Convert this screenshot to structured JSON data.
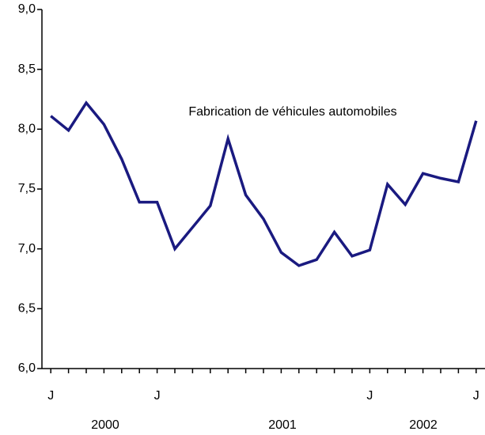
{
  "chart_data": {
    "type": "line",
    "annotation": "Fabrication de véhicules automobiles",
    "categories": [
      "J",
      null,
      null,
      null,
      null,
      null,
      "J",
      null,
      null,
      null,
      null,
      null,
      null,
      null,
      null,
      null,
      null,
      null,
      "J",
      null,
      null,
      null,
      null,
      null,
      "J"
    ],
    "years": [
      "2000",
      "2001",
      "2002"
    ],
    "series": [
      {
        "color": "#1a1a80",
        "values": [
          8.11,
          7.99,
          8.22,
          8.04,
          7.75,
          7.39,
          7.39,
          7.0,
          7.18,
          7.36,
          7.92,
          7.45,
          7.25,
          6.97,
          6.86,
          6.91,
          7.14,
          6.94,
          6.99,
          7.54,
          7.37,
          7.63,
          7.59,
          7.56,
          8.07
        ]
      }
    ],
    "ylim": [
      6,
      9
    ],
    "yticks": [
      {
        "value": 6,
        "label": "6,0"
      },
      {
        "value": 6.5,
        "label": "6,5"
      },
      {
        "value": 7,
        "label": "7,0"
      },
      {
        "value": 7.5,
        "label": "7,5"
      },
      {
        "value": 8,
        "label": "8,0"
      },
      {
        "value": 8.5,
        "label": "8,5"
      },
      {
        "value": 9,
        "label": "9,0"
      }
    ]
  }
}
